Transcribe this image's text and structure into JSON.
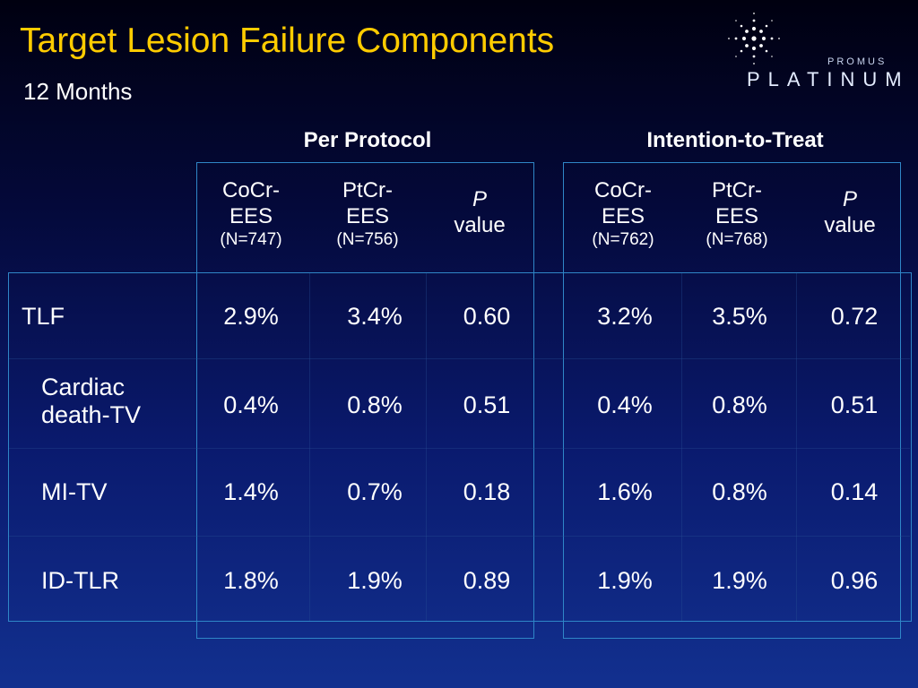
{
  "slide": {
    "title": "Target Lesion Failure Components",
    "subtitle": "12 Months"
  },
  "logo": {
    "top_word": "PROMUS",
    "main_word": "PLATINUM",
    "icon": "starburst-icon"
  },
  "table": {
    "groups": [
      "Per Protocol",
      "Intention-to-Treat"
    ],
    "columns": [
      {
        "line1": "CoCr-",
        "line2": "EES",
        "n": "(N=747)"
      },
      {
        "line1": "PtCr-",
        "line2": "EES",
        "n": "(N=756)"
      },
      {
        "line1": "P",
        "line2": "value"
      },
      {
        "line1": "CoCr-",
        "line2": "EES",
        "n": "(N=762)"
      },
      {
        "line1": "PtCr-",
        "line2": "EES",
        "n": "(N=768)"
      },
      {
        "line1": "P",
        "line2": "value"
      }
    ],
    "rows": [
      {
        "label_line1": "TLF",
        "label_line2": "",
        "values": [
          "2.9%",
          "3.4%",
          "0.60",
          "3.2%",
          "3.5%",
          "0.72"
        ]
      },
      {
        "label_line1": "Cardiac",
        "label_line2": "death-TV",
        "values": [
          "0.4%",
          "0.8%",
          "0.51",
          "0.4%",
          "0.8%",
          "0.51"
        ]
      },
      {
        "label_line1": "MI-TV",
        "label_line2": "",
        "values": [
          "1.4%",
          "0.7%",
          "0.18",
          "1.6%",
          "0.8%",
          "0.14"
        ]
      },
      {
        "label_line1": "ID-TLR",
        "label_line2": "",
        "values": [
          "1.8%",
          "1.9%",
          "0.89",
          "1.9%",
          "1.9%",
          "0.96"
        ]
      }
    ]
  },
  "colors": {
    "title": "#ffcc00",
    "box_border": "#2f86c7"
  }
}
